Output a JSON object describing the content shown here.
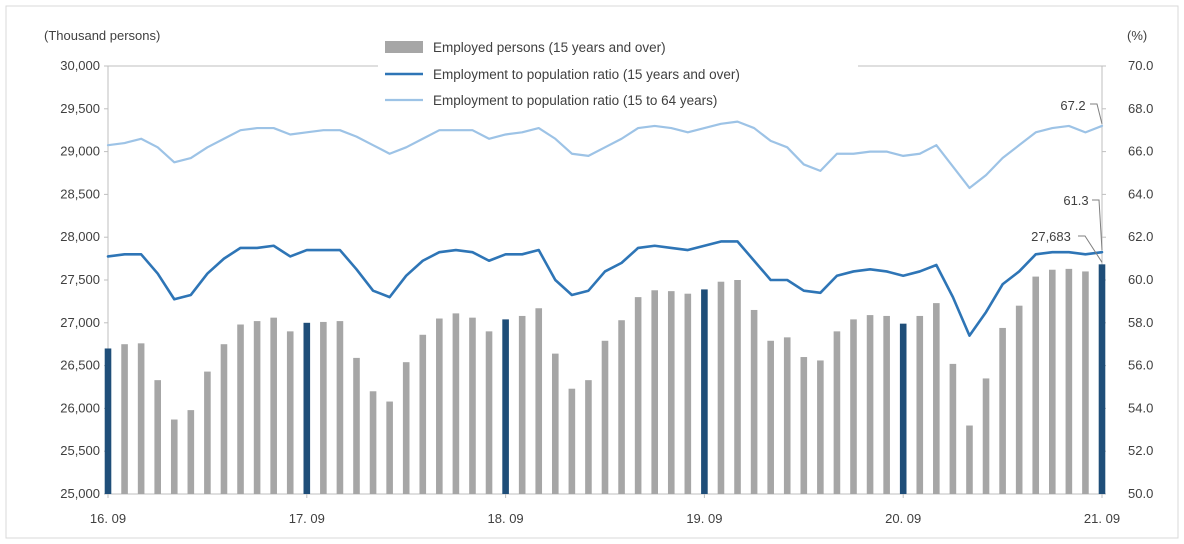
{
  "chart_data": {
    "type": "bar",
    "left_unit": "(Thousand persons)",
    "right_unit": "(%)",
    "left_axis": {
      "min": 25000,
      "max": 30000,
      "step": 500,
      "ticks": [
        "25,000",
        "25,500",
        "26,000",
        "26,500",
        "27,000",
        "27,500",
        "28,000",
        "28,500",
        "29,000",
        "29,500",
        "30,000"
      ]
    },
    "right_axis": {
      "min": 50.0,
      "max": 70.0,
      "step": 2,
      "ticks": [
        "50.0",
        "52.0",
        "54.0",
        "56.0",
        "58.0",
        "60.0",
        "62.0",
        "64.0",
        "66.0",
        "68.0",
        "70.0"
      ]
    },
    "x_labels": [
      {
        "index": 0,
        "label": "16. 09"
      },
      {
        "index": 12,
        "label": "17. 09"
      },
      {
        "index": 24,
        "label": "18. 09"
      },
      {
        "index": 36,
        "label": "19. 09"
      },
      {
        "index": 48,
        "label": "20. 09"
      },
      {
        "index": 60,
        "label": "21. 09"
      }
    ],
    "highlight_indices": [
      0,
      12,
      24,
      36,
      48,
      60
    ],
    "colors": {
      "bar": "#a6a6a6",
      "bar_highlight": "#1f4e79",
      "line_15_over": "#2e75b6",
      "line_15_64": "#9dc3e6",
      "axis": "#bfbfbf"
    },
    "series": [
      {
        "name": "Employed persons (15 years and over)",
        "kind": "bar",
        "axis": "left",
        "values": [
          26700,
          26750,
          26760,
          26330,
          25870,
          25980,
          26430,
          26750,
          26980,
          27020,
          27060,
          26900,
          27000,
          27010,
          27020,
          26590,
          26200,
          26080,
          26540,
          26860,
          27050,
          27110,
          27060,
          26900,
          27040,
          27080,
          27170,
          26640,
          26230,
          26330,
          26790,
          27030,
          27300,
          27380,
          27370,
          27340,
          27390,
          27480,
          27500,
          27150,
          26790,
          26830,
          26600,
          26560,
          26900,
          27040,
          27090,
          27080,
          26990,
          27080,
          27230,
          26520,
          25800,
          26350,
          26940,
          27200,
          27540,
          27620,
          27630,
          27600,
          27683
        ]
      },
      {
        "name": "Employment to population ratio (15 years and over)",
        "kind": "line",
        "axis": "right",
        "values": [
          61.1,
          61.2,
          61.2,
          60.3,
          59.1,
          59.3,
          60.3,
          61.0,
          61.5,
          61.5,
          61.6,
          61.1,
          61.4,
          61.4,
          61.4,
          60.5,
          59.5,
          59.2,
          60.2,
          60.9,
          61.3,
          61.4,
          61.3,
          60.9,
          61.2,
          61.2,
          61.4,
          60.0,
          59.3,
          59.5,
          60.4,
          60.8,
          61.5,
          61.6,
          61.5,
          61.4,
          61.6,
          61.8,
          61.8,
          60.9,
          60.0,
          60.0,
          59.5,
          59.4,
          60.2,
          60.4,
          60.5,
          60.4,
          60.2,
          60.4,
          60.7,
          59.2,
          57.4,
          58.5,
          59.8,
          60.4,
          61.2,
          61.3,
          61.3,
          61.2,
          61.3
        ]
      },
      {
        "name": "Employment to population ratio (15 to 64 years)",
        "kind": "line",
        "axis": "right",
        "values": [
          66.3,
          66.4,
          66.6,
          66.2,
          65.5,
          65.7,
          66.2,
          66.6,
          67.0,
          67.1,
          67.1,
          66.8,
          66.9,
          67.0,
          67.0,
          66.7,
          66.3,
          65.9,
          66.2,
          66.6,
          67.0,
          67.0,
          67.0,
          66.6,
          66.8,
          66.9,
          67.1,
          66.6,
          65.9,
          65.8,
          66.2,
          66.6,
          67.1,
          67.2,
          67.1,
          66.9,
          67.1,
          67.3,
          67.4,
          67.1,
          66.5,
          66.2,
          65.4,
          65.1,
          65.9,
          65.9,
          66.0,
          66.0,
          65.8,
          65.9,
          66.3,
          65.3,
          64.3,
          64.9,
          65.7,
          66.3,
          66.9,
          67.1,
          67.2,
          66.9,
          67.2
        ]
      }
    ],
    "annotations": [
      {
        "label": "67.2",
        "series": 2,
        "index": 60
      },
      {
        "label": "61.3",
        "series": 1,
        "index": 60
      },
      {
        "label": "27,683",
        "series": 0,
        "index": 60
      }
    ]
  }
}
